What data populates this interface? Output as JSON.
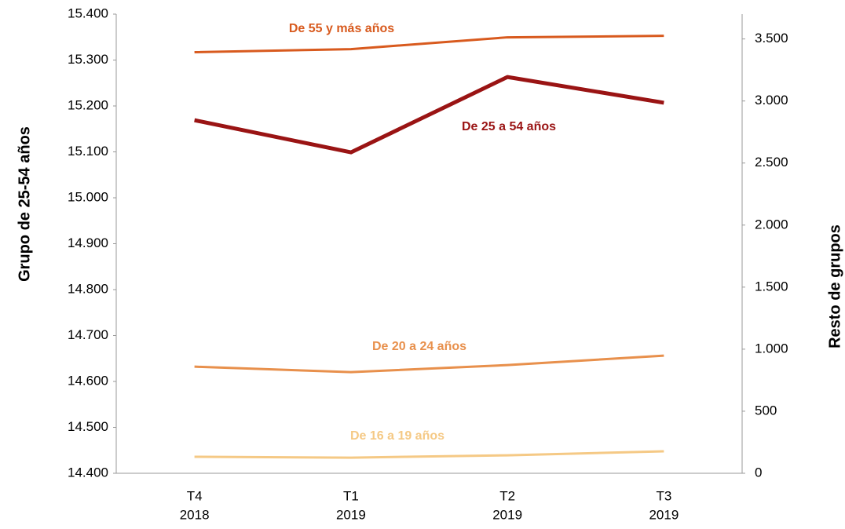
{
  "chart_data": {
    "type": "line",
    "y_label": "Grupo de 25-54 años",
    "y2_label": "Resto de grupos",
    "categories": [
      [
        "T4",
        "2018"
      ],
      [
        "T1",
        "2019"
      ],
      [
        "T2",
        "2019"
      ],
      [
        "T3",
        "2019"
      ]
    ],
    "ylim": [
      14400,
      15400
    ],
    "yticks": [
      {
        "value": 14400,
        "label": "14.400"
      },
      {
        "value": 14500,
        "label": "14.500"
      },
      {
        "value": 14600,
        "label": "14.600"
      },
      {
        "value": 14700,
        "label": "14.700"
      },
      {
        "value": 14800,
        "label": "14.800"
      },
      {
        "value": 14900,
        "label": "14.900"
      },
      {
        "value": 15000,
        "label": "15.000"
      },
      {
        "value": 15100,
        "label": "15.100"
      },
      {
        "value": 15200,
        "label": "15.200"
      },
      {
        "value": 15300,
        "label": "15.300"
      },
      {
        "value": 15400,
        "label": "15.400"
      }
    ],
    "y2lim": [
      0,
      3700
    ],
    "y2ticks": [
      0,
      500,
      {
        "value": 1000,
        "label": "1.000"
      },
      {
        "value": 1500,
        "label": "1.500"
      },
      {
        "value": 2000,
        "label": "2.000"
      },
      {
        "value": 2500,
        "label": "2.500"
      },
      {
        "value": 3000,
        "label": "3.000"
      },
      {
        "value": 3500,
        "label": "3.500"
      }
    ],
    "series": [
      {
        "name": "De 55 y más años",
        "color": "#d85a1e",
        "axis": "y2",
        "values": [
          3393,
          3418,
          3513,
          3525
        ]
      },
      {
        "name": "De 25 a 54 años",
        "color": "#9a1414",
        "values": [
          15169,
          15099,
          15263,
          15207
        ]
      },
      {
        "name": "De 20 a 24 años",
        "color": "#e8904c",
        "axis": "y2",
        "values": [
          859,
          815,
          872,
          948
        ]
      },
      {
        "name": "De 16 a 19 años",
        "color": "#f5c985",
        "axis": "y2",
        "values": [
          133,
          126,
          145,
          177
        ]
      }
    ]
  }
}
